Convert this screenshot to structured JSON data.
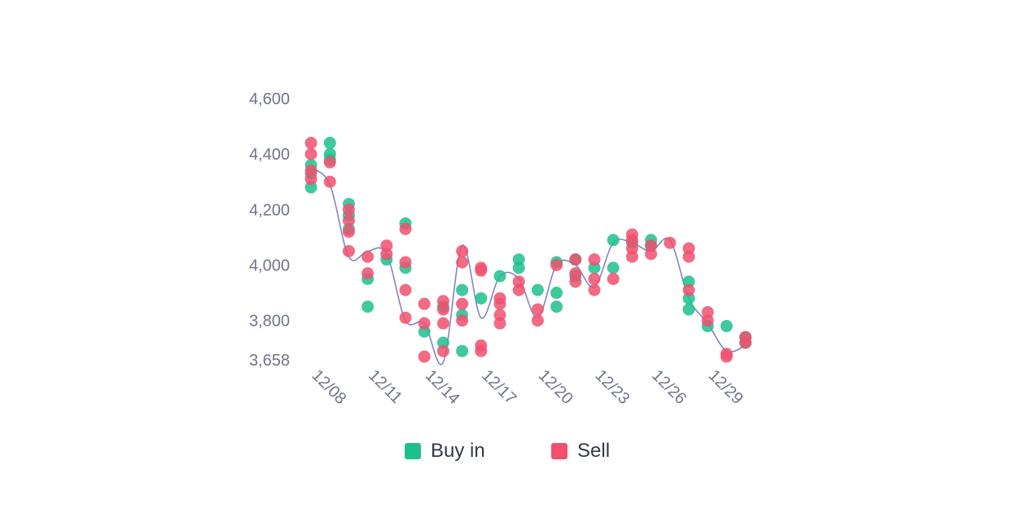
{
  "chart_data": {
    "type": "scatter",
    "y_ticks": [
      "4,600",
      "4,400",
      "4,200",
      "4,000",
      "3,800",
      "3,658"
    ],
    "y_tick_values": [
      4600,
      4400,
      4200,
      4000,
      3800,
      3658
    ],
    "ylim": [
      3658,
      4600
    ],
    "x_ticks": [
      "12/08",
      "12/11",
      "12/14",
      "12/17",
      "12/20",
      "12/23",
      "12/26",
      "12/29"
    ],
    "x_tick_days": [
      8,
      11,
      14,
      17,
      20,
      23,
      26,
      29
    ],
    "xlim": [
      8,
      31
    ],
    "grid": false,
    "legend_position": "bottom",
    "series": [
      {
        "name": "Buy in",
        "color": "#1dbf8e",
        "points": [
          [
            8,
            4280
          ],
          [
            8,
            4330
          ],
          [
            8,
            4360
          ],
          [
            9,
            4440
          ],
          [
            9,
            4400
          ],
          [
            9,
            4380
          ],
          [
            10,
            4220
          ],
          [
            10,
            4180
          ],
          [
            10,
            4130
          ],
          [
            11,
            3950
          ],
          [
            11,
            3850
          ],
          [
            12,
            4020
          ],
          [
            13,
            4150
          ],
          [
            13,
            3990
          ],
          [
            14,
            3760
          ],
          [
            15,
            3720
          ],
          [
            15,
            3850
          ],
          [
            16,
            3690
          ],
          [
            16,
            3910
          ],
          [
            16,
            3820
          ],
          [
            17,
            3880
          ],
          [
            18,
            3960
          ],
          [
            19,
            4020
          ],
          [
            19,
            3990
          ],
          [
            20,
            3910
          ],
          [
            21,
            3850
          ],
          [
            21,
            3900
          ],
          [
            21,
            4010
          ],
          [
            22,
            4020
          ],
          [
            22,
            3960
          ],
          [
            23,
            3990
          ],
          [
            24,
            3990
          ],
          [
            24,
            4090
          ],
          [
            25,
            4080
          ],
          [
            26,
            4090
          ],
          [
            26,
            4070
          ],
          [
            28,
            3940
          ],
          [
            28,
            3880
          ],
          [
            28,
            3840
          ],
          [
            29,
            3780
          ],
          [
            30,
            3780
          ],
          [
            31,
            3720
          ],
          [
            31,
            3740
          ]
        ]
      },
      {
        "name": "Sell",
        "color": "#f0506e",
        "points": [
          [
            8,
            4440
          ],
          [
            8,
            4400
          ],
          [
            8,
            4340
          ],
          [
            8,
            4310
          ],
          [
            9,
            4370
          ],
          [
            9,
            4300
          ],
          [
            10,
            4200
          ],
          [
            10,
            4160
          ],
          [
            10,
            4120
          ],
          [
            10,
            4050
          ],
          [
            11,
            4030
          ],
          [
            11,
            3970
          ],
          [
            12,
            4070
          ],
          [
            12,
            4040
          ],
          [
            13,
            4130
          ],
          [
            13,
            4010
          ],
          [
            13,
            3910
          ],
          [
            13,
            3810
          ],
          [
            14,
            3860
          ],
          [
            14,
            3790
          ],
          [
            14,
            3670
          ],
          [
            15,
            3870
          ],
          [
            15,
            3840
          ],
          [
            15,
            3790
          ],
          [
            15,
            3690
          ],
          [
            16,
            4050
          ],
          [
            16,
            4010
          ],
          [
            16,
            3860
          ],
          [
            16,
            3800
          ],
          [
            17,
            3990
          ],
          [
            17,
            3980
          ],
          [
            17,
            3710
          ],
          [
            17,
            3690
          ],
          [
            18,
            3880
          ],
          [
            18,
            3860
          ],
          [
            18,
            3820
          ],
          [
            18,
            3790
          ],
          [
            19,
            3940
          ],
          [
            19,
            3910
          ],
          [
            20,
            3840
          ],
          [
            20,
            3800
          ],
          [
            21,
            4000
          ],
          [
            22,
            4020
          ],
          [
            22,
            3970
          ],
          [
            22,
            3940
          ],
          [
            23,
            4020
          ],
          [
            23,
            3950
          ],
          [
            23,
            3910
          ],
          [
            24,
            3950
          ],
          [
            25,
            4110
          ],
          [
            25,
            4090
          ],
          [
            25,
            4060
          ],
          [
            25,
            4030
          ],
          [
            26,
            4070
          ],
          [
            26,
            4040
          ],
          [
            27,
            4080
          ],
          [
            28,
            4060
          ],
          [
            28,
            4030
          ],
          [
            28,
            3910
          ],
          [
            29,
            3830
          ],
          [
            29,
            3800
          ],
          [
            30,
            3680
          ],
          [
            30,
            3670
          ],
          [
            31,
            3740
          ],
          [
            31,
            3720
          ]
        ]
      }
    ],
    "trend_line": {
      "color": "#7f86c4",
      "points": [
        [
          8,
          4350
        ],
        [
          9,
          4290
        ],
        [
          10,
          4030
        ],
        [
          11,
          4050
        ],
        [
          12,
          4040
        ],
        [
          13,
          3800
        ],
        [
          14,
          3790
        ],
        [
          15,
          3650
        ],
        [
          16,
          4070
        ],
        [
          17,
          3810
        ],
        [
          18,
          3960
        ],
        [
          19,
          3950
        ],
        [
          20,
          3810
        ],
        [
          21,
          4000
        ],
        [
          22,
          4000
        ],
        [
          23,
          3920
        ],
        [
          24,
          4080
        ],
        [
          25,
          4080
        ],
        [
          26,
          4050
        ],
        [
          27,
          4090
        ],
        [
          28,
          3880
        ],
        [
          29,
          3790
        ],
        [
          30,
          3690
        ],
        [
          31,
          3710
        ]
      ]
    }
  },
  "legend": {
    "items": [
      {
        "label": "Buy in",
        "color": "#1dbf8e"
      },
      {
        "label": "Sell",
        "color": "#f0506e"
      }
    ]
  }
}
